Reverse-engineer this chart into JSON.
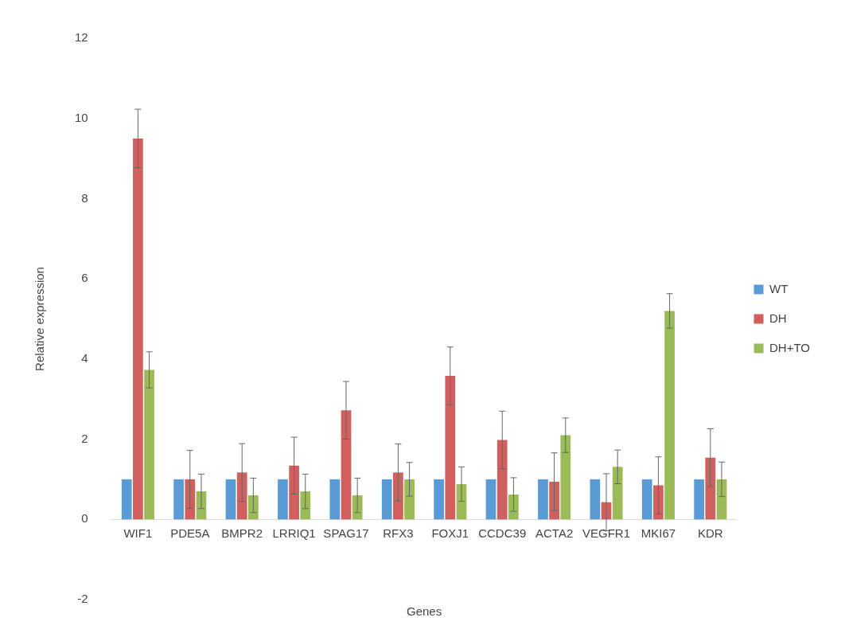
{
  "chart_data": {
    "type": "bar",
    "xlabel": "Genes",
    "ylabel": "Relative expression",
    "categories": [
      "WIF1",
      "PDE5A",
      "BMPR2",
      "LRRIQ1",
      "SPAG17",
      "RFX3",
      "FOXJ1",
      "CCDC39",
      "ACTA2",
      "VEGFR1",
      "MKI67",
      "KDR"
    ],
    "series": [
      {
        "name": "WT",
        "color": "#5b9bd5",
        "values": [
          1,
          1,
          1,
          1,
          1,
          1,
          1,
          1,
          1,
          1,
          1,
          1
        ]
      },
      {
        "name": "DH",
        "color": "#d0605e",
        "values": [
          9.5,
          1.0,
          1.17,
          1.34,
          2.72,
          1.17,
          3.58,
          1.98,
          0.94,
          0.43,
          0.85,
          1.54
        ],
        "errors": [
          0.73,
          0.72,
          0.72,
          0.71,
          0.72,
          0.71,
          0.72,
          0.72,
          0.72,
          0.71,
          0.71,
          0.72
        ]
      },
      {
        "name": "DH+TO",
        "color": "#9bbb59",
        "values": [
          3.73,
          0.7,
          0.6,
          0.7,
          0.6,
          1.0,
          0.88,
          0.62,
          2.1,
          1.31,
          5.2,
          1.0
        ],
        "errors": [
          0.45,
          0.43,
          0.43,
          0.43,
          0.43,
          0.42,
          0.43,
          0.42,
          0.43,
          0.42,
          0.43,
          0.43
        ]
      }
    ],
    "ylim": [
      -2,
      12
    ],
    "yticks": [
      -2,
      0,
      2,
      4,
      6,
      8,
      10,
      12
    ],
    "grid": false,
    "legend": "right"
  }
}
